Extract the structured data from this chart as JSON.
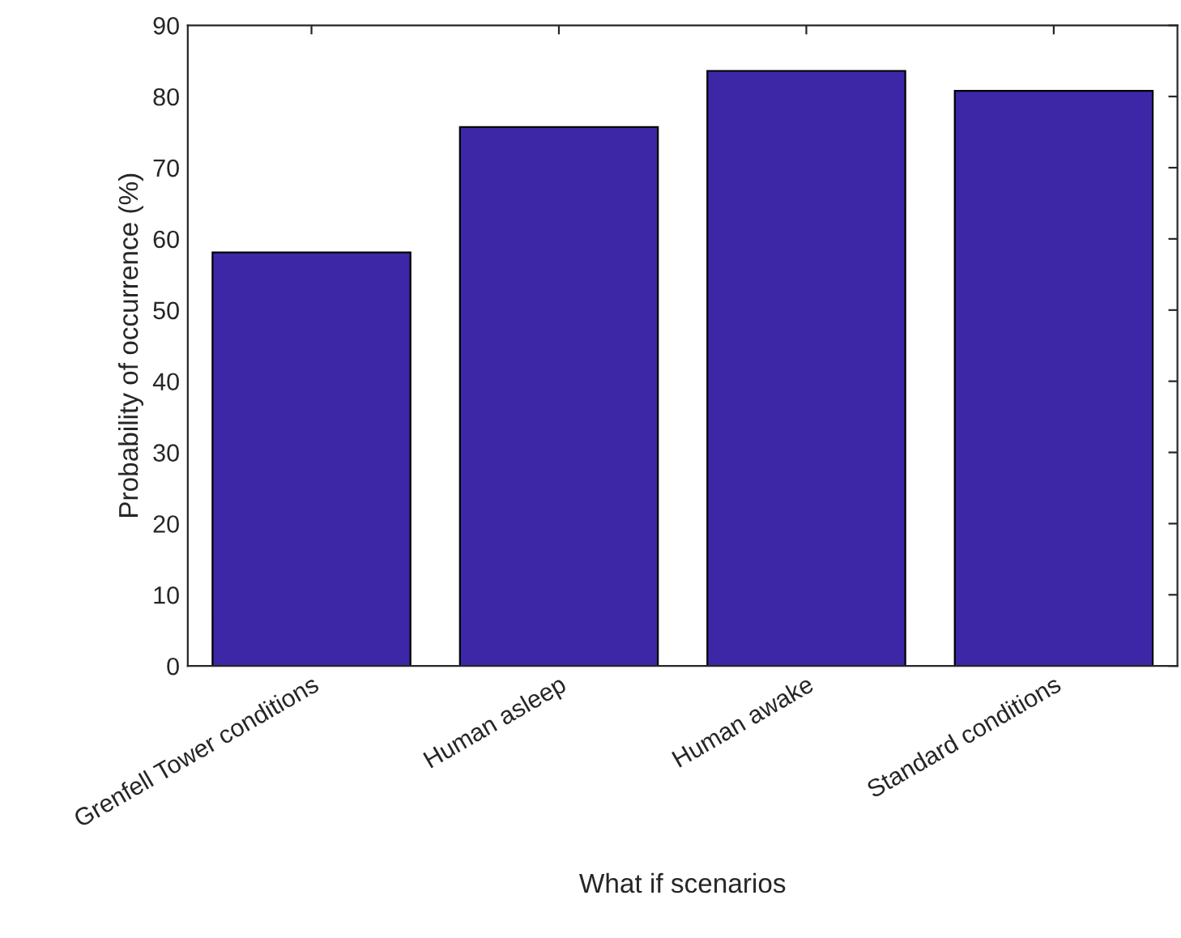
{
  "chart_data": {
    "type": "bar",
    "xlabel": "What if scenarios",
    "ylabel": "Probability of occurrence (%)",
    "categories": [
      "Grenfell Tower conditions",
      "Human asleep",
      "Human awake",
      "Standard conditions"
    ],
    "values": [
      58.1,
      75.7,
      83.6,
      80.8
    ],
    "color": "#3d27a6",
    "ylim": [
      0,
      90
    ],
    "yticks": [
      0,
      10,
      20,
      30,
      40,
      50,
      60,
      70,
      80,
      90
    ],
    "grid": false
  }
}
